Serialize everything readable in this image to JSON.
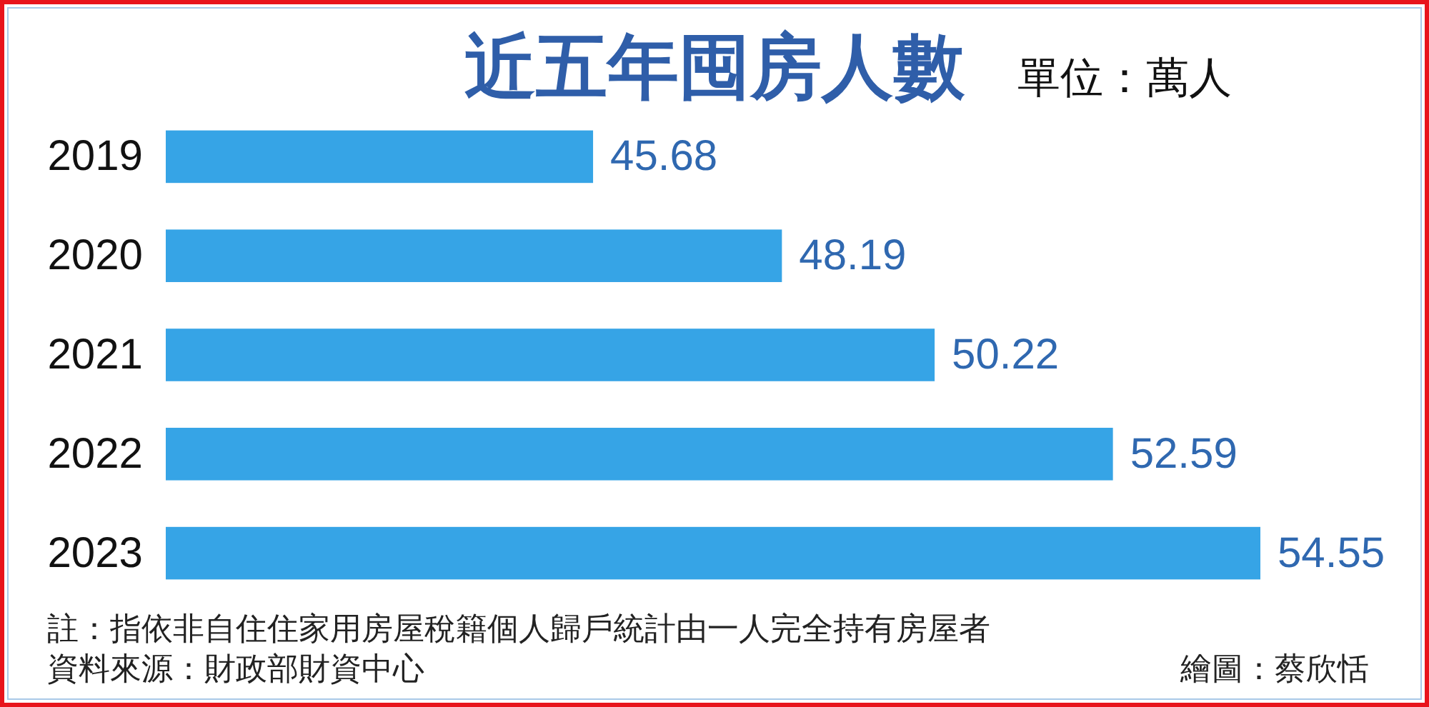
{
  "chart_data": {
    "type": "bar",
    "orientation": "horizontal",
    "title": "近五年囤房人數",
    "subtitle": "單位：萬人",
    "categories": [
      "2019",
      "2020",
      "2021",
      "2022",
      "2023"
    ],
    "values": [
      45.68,
      48.19,
      50.22,
      52.59,
      54.55
    ],
    "color": "#36a4e6",
    "data_labels": true,
    "xlim": [
      40,
      54.55
    ],
    "tick_labels": "y",
    "annotations": [
      "註：指依非自住住家用房屋稅籍個人歸戶統計由一人完全持有房屋者",
      "資料來源：財政部財資中心",
      "繪圖：蔡欣恬"
    ]
  }
}
